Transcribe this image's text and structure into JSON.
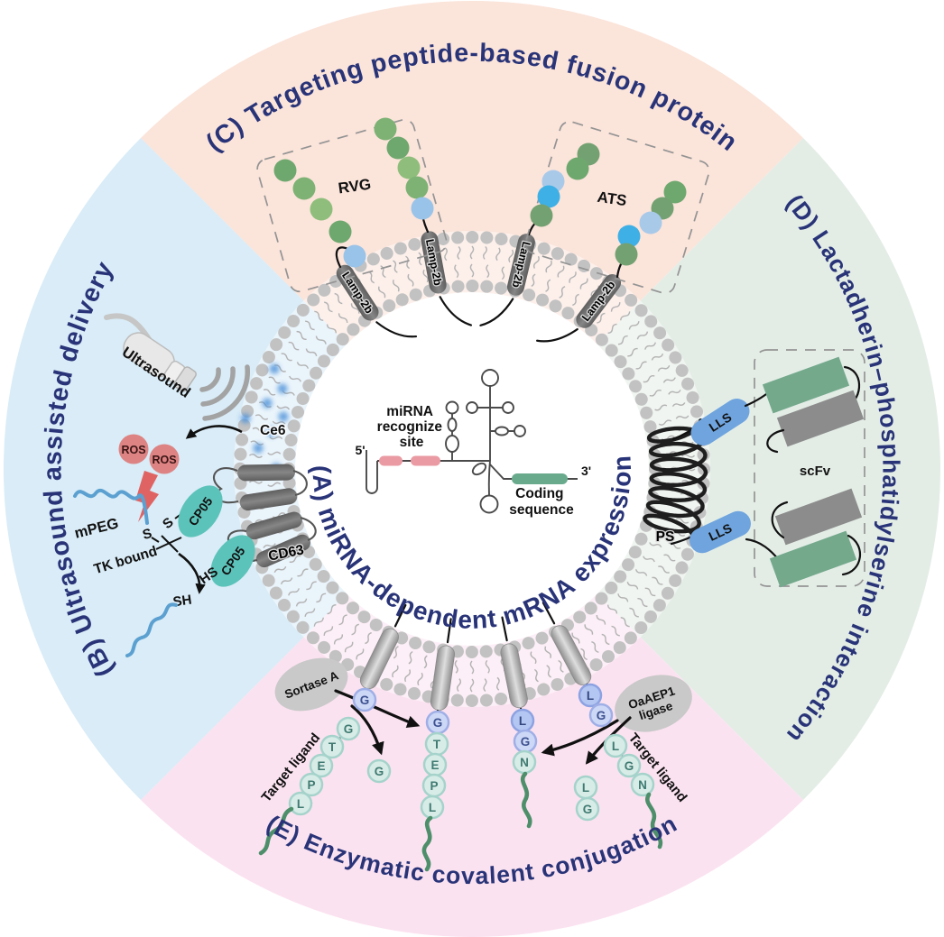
{
  "sections": {
    "a_mrna": {
      "title": "(A) miRNA-dependent mRNA expression",
      "five_prime": "5'",
      "three_prime": "3'",
      "mirna_site_lines": [
        "miRNA",
        "recognize",
        "site"
      ],
      "coding_lines": [
        "Coding",
        "sequence"
      ]
    },
    "b_ultrasound": {
      "title": "(B) Ultrasound assisted delivery",
      "ultrasound": "Ultrasound",
      "ce6": "Ce6",
      "ros": "ROS",
      "mpeg": "mPEG",
      "s": "S",
      "tk_bound": "TK bound",
      "cp05": "CP05",
      "hs": "HS",
      "sh": "SH",
      "cd63": "CD63"
    },
    "c_peptide": {
      "title": "(C) Targeting peptide-based fusion protein",
      "rvg": "RVG",
      "ats": "ATS",
      "lamp2b": "Lamp-2b"
    },
    "d_lactadherin": {
      "title": "(D) Lactadherin–phosphatidylserine interaction",
      "lls": "LLS",
      "scfv": "scFv",
      "ps": "PS"
    },
    "e_enzymatic": {
      "title": "(E) Enzymatic covalent conjugation",
      "sortase": "Sortase A",
      "oaaep1_lines": [
        "OaAEP1",
        "ligase"
      ],
      "target_ligand": "Target ligand",
      "g_bead": "G",
      "gtepl_beads": [
        "G",
        "T",
        "E",
        "P",
        "L"
      ],
      "lgn_beads": [
        "L",
        "G",
        "N"
      ],
      "lg_beads": [
        "L",
        "G"
      ]
    }
  },
  "colors": {
    "sector_c_peach": "#fbe4da",
    "sector_d_green": "#e3ede6",
    "sector_e_pink": "#fbe2f0",
    "sector_b_blue": "#d9ecf7",
    "title_navy": "#293478",
    "membrane_head_gray": "#c2c2c2",
    "lipid_tail_gray": "#b3b3b3",
    "protein_dark_gray": "#6d6d6d",
    "cp05_teal": "#5cc3ba",
    "ros_red": "#dd8383",
    "ce6_blue": "#4a90d9",
    "mirna_site_pink": "#ea9aa2",
    "coding_green": "#69a98c",
    "lls_blue": "#6fa4de",
    "scfv_green": "#74a98c",
    "scfv_gray": "#8c8c8c",
    "ligand_squiggle_green": "#4e8f6b",
    "enzyme_gray": "#c9c9c9",
    "bead_blue_fill": "#cdd8f7",
    "bead_blue_dark_fill": "#b4c7f2",
    "bead_teal_fill": "#d8ece7",
    "peptide_green_bead": "#6fa86f",
    "peptide_blue_bead": "#99c3e8",
    "peg_blue": "#5ba0d0"
  }
}
